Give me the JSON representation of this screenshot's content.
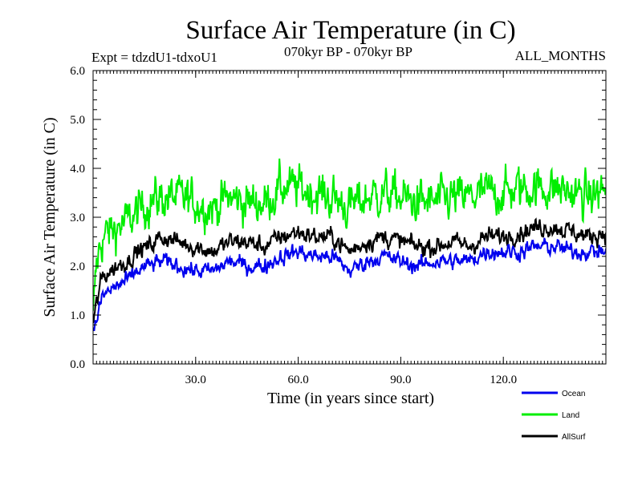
{
  "chart_data": {
    "type": "line",
    "title": "Surface Air Temperature (in C)",
    "subtitle_left": "Expt = tdzdU1-tdxoU1",
    "subtitle_center": "070kyr BP - 070kyr BP",
    "subtitle_right": "ALL_MONTHS",
    "xlabel": "Time (in years since start)",
    "ylabel": "Surface Air Temperature (in C)",
    "xlim": [
      0,
      150
    ],
    "ylim": [
      0.0,
      6.0
    ],
    "xticks": [
      30,
      60,
      90,
      120
    ],
    "xtick_labels": [
      "30.0",
      "60.0",
      "90.0",
      "120.0"
    ],
    "yticks": [
      0,
      1,
      2,
      3,
      4,
      5,
      6
    ],
    "ytick_labels": [
      "0.0",
      "1.0",
      "2.0",
      "3.0",
      "4.0",
      "5.0",
      "6.0"
    ],
    "x_minor_step": 1,
    "y_minor_step": 0.2,
    "legend_position": "bottom-right",
    "series": [
      {
        "name": "Land",
        "color": "#00ee00",
        "x": [
          0,
          1,
          2,
          3,
          5,
          7,
          10,
          13,
          16,
          20,
          25,
          30,
          35,
          40,
          45,
          50,
          55,
          60,
          65,
          70,
          75,
          80,
          85,
          90,
          95,
          100,
          105,
          110,
          115,
          120,
          125,
          130,
          135,
          140,
          145,
          150
        ],
        "values": [
          0.9,
          2.0,
          2.4,
          2.6,
          2.7,
          2.8,
          2.9,
          3.1,
          3.3,
          3.4,
          3.4,
          3.3,
          3.2,
          3.4,
          3.3,
          3.3,
          3.6,
          3.6,
          3.5,
          3.4,
          3.2,
          3.4,
          3.5,
          3.4,
          3.3,
          3.3,
          3.4,
          3.4,
          3.5,
          3.5,
          3.6,
          3.6,
          3.6,
          3.5,
          3.4,
          3.6
        ],
        "noise": 0.42
      },
      {
        "name": "AllSurf",
        "color": "#000000",
        "x": [
          0,
          1,
          2,
          3,
          5,
          7,
          10,
          13,
          16,
          20,
          25,
          30,
          35,
          40,
          45,
          50,
          55,
          60,
          65,
          70,
          75,
          80,
          85,
          90,
          95,
          100,
          105,
          110,
          115,
          120,
          125,
          130,
          135,
          140,
          145,
          150
        ],
        "values": [
          0.8,
          1.2,
          1.6,
          1.8,
          1.9,
          2.0,
          2.1,
          2.3,
          2.4,
          2.6,
          2.5,
          2.4,
          2.3,
          2.5,
          2.5,
          2.4,
          2.6,
          2.7,
          2.6,
          2.6,
          2.3,
          2.5,
          2.6,
          2.5,
          2.4,
          2.4,
          2.5,
          2.4,
          2.6,
          2.6,
          2.7,
          2.8,
          2.8,
          2.7,
          2.6,
          2.7
        ],
        "noise": 0.18
      },
      {
        "name": "Ocean",
        "color": "#0000ee",
        "x": [
          0,
          1,
          2,
          3,
          5,
          7,
          10,
          13,
          16,
          20,
          25,
          30,
          35,
          40,
          45,
          50,
          55,
          60,
          65,
          70,
          75,
          80,
          85,
          90,
          95,
          100,
          105,
          110,
          115,
          120,
          125,
          130,
          135,
          140,
          145,
          150
        ],
        "values": [
          0.6,
          0.9,
          1.2,
          1.4,
          1.5,
          1.6,
          1.7,
          1.9,
          2.0,
          2.1,
          2.0,
          1.9,
          1.9,
          2.1,
          2.0,
          2.0,
          2.2,
          2.3,
          2.2,
          2.2,
          1.9,
          2.1,
          2.2,
          2.1,
          2.0,
          2.1,
          2.1,
          2.1,
          2.3,
          2.3,
          2.3,
          2.4,
          2.4,
          2.3,
          2.3,
          2.3
        ],
        "noise": 0.16
      }
    ]
  }
}
